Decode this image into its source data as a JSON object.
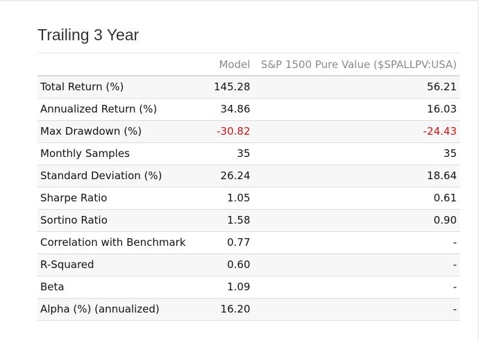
{
  "title": "Trailing 3 Year",
  "columns": [
    "",
    "Model",
    "S&P 1500 Pure Value ($SPALLPV:USA)"
  ],
  "rows": [
    {
      "label": "Total Return (%)",
      "model": "145.28",
      "bench": "56.21"
    },
    {
      "label": "Annualized Return (%)",
      "model": "34.86",
      "bench": "16.03"
    },
    {
      "label": "Max Drawdown (%)",
      "model": "-30.82",
      "bench": "-24.43"
    },
    {
      "label": "Monthly Samples",
      "model": "35",
      "bench": "35"
    },
    {
      "label": "Standard Deviation (%)",
      "model": "26.24",
      "bench": "18.64"
    },
    {
      "label": "Sharpe Ratio",
      "model": "1.05",
      "bench": "0.61"
    },
    {
      "label": "Sortino Ratio",
      "model": "1.58",
      "bench": "0.90"
    },
    {
      "label": "Correlation with Benchmark",
      "model": "0.77",
      "bench": "-"
    },
    {
      "label": "R-Squared",
      "model": "0.60",
      "bench": "-"
    },
    {
      "label": "Beta",
      "model": "1.09",
      "bench": "-"
    },
    {
      "label": "Alpha (%) (annualized)",
      "model": "16.20",
      "bench": "-"
    }
  ],
  "colors": {
    "negative": "#c0181b",
    "header_text": "#8a8a8a",
    "stripe": "#f7f7f7"
  }
}
